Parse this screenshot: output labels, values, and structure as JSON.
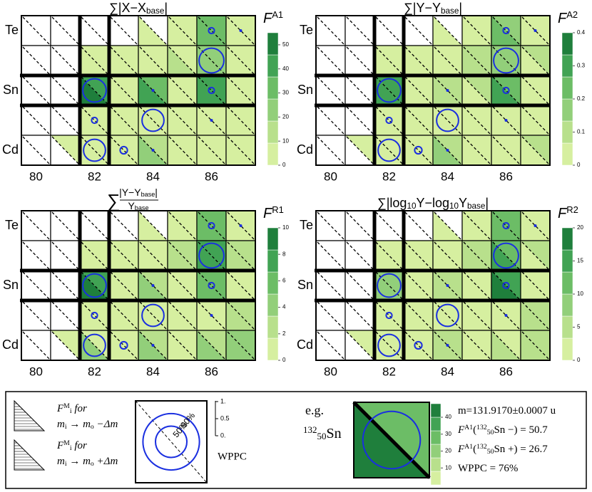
{
  "chart_data": [
    {
      "type": "heatmap",
      "title": [
        [
          "∑|X−X",
          ""
        ],
        [
          "base",
          "sub"
        ],
        [
          "|",
          ""
        ]
      ],
      "zlabel": [
        [
          "F",
          "i"
        ],
        [
          "A1",
          "sup"
        ]
      ],
      "categories": [
        "80",
        null,
        "82",
        null,
        "84",
        null,
        "86",
        null
      ],
      "rows": [
        "Te",
        null,
        "Sn",
        null,
        "Cd"
      ],
      "zlim": [
        0,
        55
      ],
      "zticks": [
        0,
        10,
        20,
        30,
        40,
        50
      ],
      "colors": [
        "#d6efa0",
        "#b8e08c",
        "#92cf7a",
        "#6cbd66",
        "#41a354",
        "#1f7f3c"
      ],
      "lower": [
        [
          null,
          null,
          null,
          null,
          5,
          6,
          30,
          8
        ],
        [
          null,
          null,
          6,
          7,
          8,
          10,
          25,
          8
        ],
        [
          null,
          null,
          48,
          6,
          40,
          8,
          45,
          7
        ],
        [
          null,
          null,
          6,
          5,
          6,
          5,
          8,
          6
        ],
        [
          null,
          null,
          5,
          6,
          22,
          8,
          7,
          8
        ]
      ],
      "upper": [
        [
          null,
          null,
          null,
          null,
          null,
          6,
          28,
          8
        ],
        [
          null,
          null,
          8,
          7,
          7,
          9,
          22,
          9
        ],
        [
          null,
          null,
          40,
          8,
          33,
          9,
          40,
          8
        ],
        [
          null,
          null,
          7,
          6,
          5,
          7,
          7,
          6
        ],
        [
          null,
          4,
          8,
          5,
          18,
          6,
          8,
          9
        ]
      ],
      "wppc": [
        [
          null,
          null,
          null,
          null,
          null,
          null,
          20,
          5
        ],
        [
          null,
          null,
          null,
          null,
          null,
          null,
          85,
          null
        ],
        [
          null,
          null,
          80,
          null,
          5,
          null,
          20,
          null
        ],
        [
          null,
          null,
          20,
          null,
          75,
          null,
          5,
          null
        ],
        [
          null,
          null,
          75,
          25,
          5,
          null,
          null,
          null
        ]
      ]
    },
    {
      "type": "heatmap",
      "title": [
        [
          "∑|Y−Y",
          ""
        ],
        [
          "base",
          "sub"
        ],
        [
          "|",
          ""
        ]
      ],
      "zlabel": [
        [
          "F",
          "i"
        ],
        [
          "A2",
          "sup"
        ]
      ],
      "categories": [
        "80",
        null,
        "82",
        null,
        "84",
        null,
        "86",
        null
      ],
      "rows": [
        "Te",
        null,
        "Sn",
        null,
        "Cd"
      ],
      "zlim": [
        0,
        0.4
      ],
      "zticks": [
        0,
        0.1,
        0.2,
        0.3,
        0.4
      ],
      "colors": [
        "#d6efa0",
        "#b8e08c",
        "#92cf7a",
        "#6cbd66",
        "#41a354",
        "#1f7f3c"
      ],
      "lower": [
        [
          null,
          null,
          null,
          null,
          0.04,
          0.05,
          0.2,
          0.06
        ],
        [
          null,
          null,
          0.05,
          0.06,
          0.06,
          0.07,
          0.16,
          0.06
        ],
        [
          null,
          null,
          0.32,
          0.05,
          0.12,
          0.06,
          0.28,
          0.05
        ],
        [
          null,
          null,
          0.05,
          0.04,
          0.05,
          0.04,
          0.06,
          0.05
        ],
        [
          null,
          null,
          0.04,
          0.05,
          0.14,
          0.06,
          0.05,
          0.06
        ]
      ],
      "upper": [
        [
          null,
          null,
          null,
          null,
          null,
          0.05,
          0.18,
          0.06
        ],
        [
          null,
          null,
          0.06,
          0.05,
          0.05,
          0.07,
          0.15,
          0.07
        ],
        [
          null,
          null,
          0.28,
          0.06,
          0.1,
          0.07,
          0.25,
          0.06
        ],
        [
          null,
          null,
          0.05,
          0.05,
          0.04,
          0.05,
          0.05,
          0.05
        ],
        [
          null,
          0.03,
          0.06,
          0.04,
          0.12,
          0.05,
          0.06,
          0.07
        ]
      ],
      "wppc": [
        [
          null,
          null,
          null,
          null,
          null,
          null,
          20,
          5
        ],
        [
          null,
          null,
          null,
          null,
          null,
          null,
          85,
          null
        ],
        [
          null,
          null,
          80,
          null,
          5,
          null,
          20,
          null
        ],
        [
          null,
          null,
          20,
          null,
          75,
          null,
          5,
          null
        ],
        [
          null,
          null,
          75,
          25,
          5,
          null,
          null,
          null
        ]
      ]
    },
    {
      "type": "heatmap",
      "title": {
        "lead": [
          [
            "∑",
            ""
          ]
        ],
        "num": [
          [
            "|Y−Y",
            ""
          ],
          [
            "base",
            "sub"
          ],
          [
            "|",
            ""
          ]
        ],
        "den": [
          [
            "Y",
            ""
          ],
          [
            "base",
            "sub"
          ]
        ]
      },
      "zlabel": [
        [
          "F",
          "i"
        ],
        [
          "R1",
          "sup"
        ]
      ],
      "categories": [
        "80",
        null,
        "82",
        null,
        "84",
        null,
        "86",
        null
      ],
      "rows": [
        "Te",
        null,
        "Sn",
        null,
        "Cd"
      ],
      "zlim": [
        0,
        10
      ],
      "zticks": [
        0,
        2,
        4,
        6,
        8,
        10
      ],
      "colors": [
        "#d6efa0",
        "#b8e08c",
        "#92cf7a",
        "#6cbd66",
        "#41a354",
        "#1f7f3c"
      ],
      "lower": [
        [
          null,
          null,
          null,
          null,
          1,
          1.5,
          6,
          1.5
        ],
        [
          null,
          null,
          1.5,
          1.5,
          1.5,
          2,
          8,
          2
        ],
        [
          null,
          null,
          9,
          1.5,
          4,
          1.5,
          6,
          1.5
        ],
        [
          null,
          null,
          1.5,
          1,
          1.5,
          1,
          1.5,
          3
        ],
        [
          null,
          null,
          3.5,
          1.5,
          4,
          1.5,
          4,
          4
        ]
      ],
      "upper": [
        [
          null,
          null,
          null,
          null,
          null,
          1.5,
          5,
          1.5
        ],
        [
          null,
          null,
          1.5,
          1.5,
          1.5,
          2,
          7,
          2
        ],
        [
          null,
          null,
          7,
          1.5,
          3,
          1.5,
          5,
          1.5
        ],
        [
          null,
          null,
          1.5,
          1.5,
          1,
          1.5,
          1.5,
          3
        ],
        [
          null,
          1,
          1.5,
          1,
          3,
          1,
          3,
          4
        ]
      ],
      "wppc": [
        [
          null,
          null,
          null,
          null,
          null,
          null,
          20,
          5
        ],
        [
          null,
          null,
          null,
          null,
          null,
          null,
          85,
          null
        ],
        [
          null,
          null,
          80,
          null,
          5,
          null,
          20,
          null
        ],
        [
          null,
          null,
          20,
          null,
          75,
          null,
          5,
          null
        ],
        [
          null,
          null,
          75,
          25,
          5,
          null,
          null,
          null
        ]
      ]
    },
    {
      "type": "heatmap",
      "title": [
        [
          "∑|log",
          ""
        ],
        [
          "10",
          "sub"
        ],
        [
          "Y−log",
          ""
        ],
        [
          "10",
          "sub"
        ],
        [
          "Y",
          ""
        ],
        [
          "base",
          "sub"
        ],
        [
          "|",
          ""
        ]
      ],
      "zlabel": [
        [
          "F",
          "i"
        ],
        [
          "R2",
          "sup"
        ]
      ],
      "categories": [
        "80",
        null,
        "82",
        null,
        "84",
        null,
        "86",
        null
      ],
      "rows": [
        "Te",
        null,
        "Sn",
        null,
        "Cd"
      ],
      "zlim": [
        0,
        20
      ],
      "zticks": [
        0,
        5,
        10,
        15,
        20
      ],
      "colors": [
        "#d6efa0",
        "#b8e08c",
        "#92cf7a",
        "#6cbd66",
        "#41a354",
        "#1f7f3c"
      ],
      "lower": [
        [
          null,
          null,
          null,
          null,
          3,
          3,
          12,
          3
        ],
        [
          null,
          null,
          2,
          3,
          3,
          4,
          14,
          3
        ],
        [
          null,
          null,
          8,
          3,
          6,
          3,
          17,
          3
        ],
        [
          null,
          null,
          3,
          2,
          3,
          2,
          3,
          4
        ],
        [
          null,
          null,
          3,
          3,
          6,
          3,
          4,
          6
        ]
      ],
      "upper": [
        [
          null,
          null,
          null,
          null,
          null,
          3,
          11,
          3
        ],
        [
          null,
          null,
          3,
          3,
          3,
          4,
          13,
          4
        ],
        [
          null,
          null,
          7,
          3,
          5,
          3,
          15,
          3
        ],
        [
          null,
          null,
          3,
          3,
          2,
          3,
          3,
          4
        ],
        [
          null,
          2,
          3,
          2,
          5,
          2,
          3,
          5
        ]
      ],
      "wppc": [
        [
          null,
          null,
          null,
          null,
          null,
          null,
          20,
          5
        ],
        [
          null,
          null,
          null,
          null,
          null,
          null,
          85,
          null
        ],
        [
          null,
          null,
          80,
          null,
          5,
          null,
          20,
          null
        ],
        [
          null,
          null,
          20,
          null,
          75,
          null,
          5,
          null
        ],
        [
          null,
          null,
          75,
          25,
          5,
          null,
          null,
          null
        ]
      ]
    }
  ],
  "legend": {
    "minus": [
      [
        [
          "F",
          "i"
        ],
        [
          "M",
          "sup"
        ],
        [
          "i",
          "sub"
        ],
        [
          " for",
          "i"
        ]
      ],
      [
        [
          "m",
          "i"
        ],
        [
          "i",
          "sub"
        ],
        [
          " → m",
          "i"
        ],
        [
          "o",
          "sub"
        ],
        [
          " −Δm",
          "i"
        ]
      ]
    ],
    "plus": [
      [
        [
          "F",
          "i"
        ],
        [
          "M",
          "sup"
        ],
        [
          "i",
          "sub"
        ],
        [
          " for",
          "i"
        ]
      ],
      [
        [
          "m",
          "i"
        ],
        [
          "i",
          "sub"
        ],
        [
          " → m",
          "i"
        ],
        [
          "o",
          "sub"
        ],
        [
          " +Δm",
          "i"
        ]
      ]
    ],
    "wppc_circles": [
      {
        "value": 90,
        "label": "90%"
      },
      {
        "value": 50,
        "label": "50%"
      }
    ],
    "wppc_ticks": [
      {
        "value": 1,
        "label": "1."
      },
      0.5,
      {
        "value": 0,
        "label": "0."
      }
    ],
    "wppc_label": "WPPC"
  },
  "example": {
    "eg": "e.g.",
    "nuclide": [
      [
        "132",
        "sup"
      ],
      [
        "50",
        "sub"
      ],
      [
        "Sn",
        ""
      ]
    ],
    "zlim": [
      0,
      48
    ],
    "zticks": [
      10,
      20,
      30,
      40
    ],
    "colors": [
      "#d6efa0",
      "#b8e08c",
      "#92cf7a",
      "#6cbd66",
      "#41a354",
      "#1f7f3c"
    ],
    "lines": [
      [
        [
          "m=131.9170±0.0007 u",
          ""
        ]
      ],
      [
        [
          "F",
          "i"
        ],
        [
          "A1",
          "sup"
        ],
        [
          "(",
          ""
        ],
        [
          "132",
          "sup"
        ],
        [
          "50",
          "sub"
        ],
        [
          "Sn −) = ",
          ""
        ],
        [
          50.7,
          ""
        ]
      ],
      [
        [
          "F",
          "i"
        ],
        [
          "A1",
          "sup"
        ],
        [
          "(",
          ""
        ],
        [
          "132",
          "sup"
        ],
        [
          "50",
          "sub"
        ],
        [
          "Sn +) = ",
          ""
        ],
        [
          26.7,
          ""
        ]
      ],
      [
        [
          "WPPC = ",
          ""
        ],
        [
          76,
          ""
        ],
        [
          "%",
          ""
        ]
      ]
    ]
  }
}
